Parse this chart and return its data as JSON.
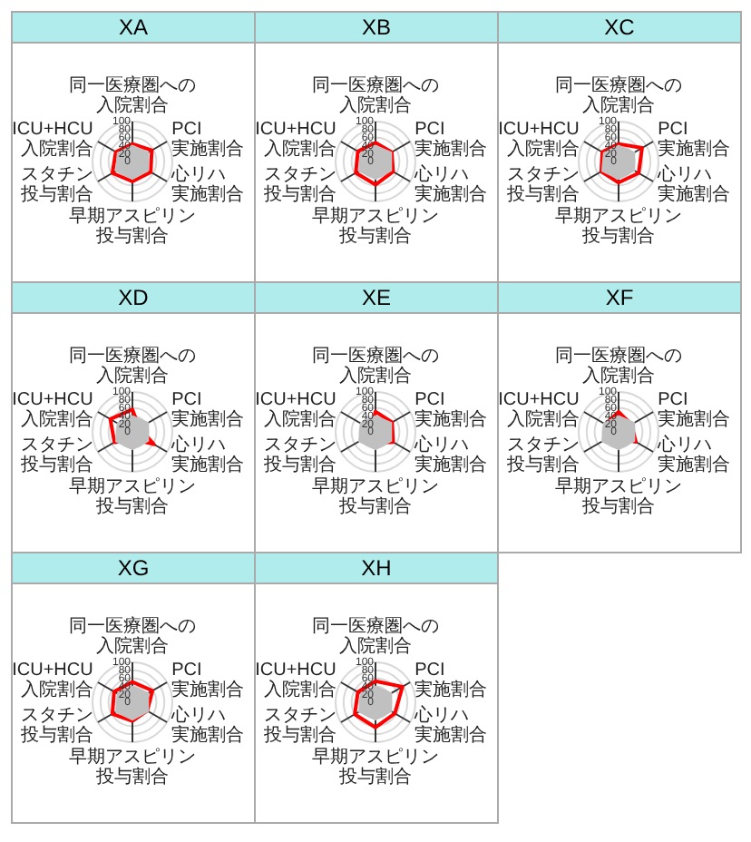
{
  "chart_data": [
    {
      "type": "radar",
      "title": "XA",
      "categories": [
        "同一医療圏への入院割合",
        "PCI実施割合",
        "心リハ実施割合",
        "早期アスピリン投与割合",
        "スタチン投与割合",
        "ICU+HCU入院割合"
      ],
      "ylim": [
        0,
        100
      ],
      "yticks": [
        0,
        20,
        40,
        60,
        80,
        100
      ],
      "grid": true,
      "series": [
        {
          "type": "area",
          "color": "#c0c0c0",
          "values": [
            42,
            48,
            48,
            46,
            50,
            45
          ]
        },
        {
          "color": "#ff0000",
          "values": [
            44,
            56,
            53,
            50,
            58,
            48
          ]
        }
      ]
    },
    {
      "type": "radar",
      "title": "XB",
      "categories": [
        "同一医療圏への入院割合",
        "PCI実施割合",
        "心リハ実施割合",
        "早期アスピリン投与割合",
        "スタチン投与割合",
        "ICU+HCU入院割合"
      ],
      "ylim": [
        0,
        100
      ],
      "yticks": [
        0,
        20,
        40,
        60,
        80,
        100
      ],
      "grid": true,
      "series": [
        {
          "type": "area",
          "color": "#c0c0c0",
          "values": [
            42,
            48,
            48,
            46,
            50,
            45
          ]
        },
        {
          "color": "#ff0000",
          "values": [
            47,
            47,
            51,
            58,
            57,
            51
          ]
        }
      ]
    },
    {
      "type": "radar",
      "title": "XC",
      "categories": [
        "同一医療圏への入院割合",
        "PCI実施割合",
        "心リハ実施割合",
        "早期アスピリン投与割合",
        "スタチン投与割合",
        "ICU+HCU入院割合"
      ],
      "ylim": [
        0,
        100
      ],
      "yticks": [
        0,
        20,
        40,
        60,
        80,
        100
      ],
      "grid": true,
      "series": [
        {
          "type": "area",
          "color": "#c0c0c0",
          "values": [
            42,
            48,
            48,
            46,
            50,
            45
          ]
        },
        {
          "color": "#ff0000",
          "values": [
            44,
            68,
            58,
            53,
            50,
            47
          ]
        }
      ]
    },
    {
      "type": "radar",
      "title": "XD",
      "categories": [
        "同一医療圏への入院割合",
        "PCI実施割合",
        "心リハ実施割合",
        "早期アスピリン投与割合",
        "スタチン投与割合",
        "ICU+HCU入院割合"
      ],
      "ylim": [
        0,
        100
      ],
      "yticks": [
        0,
        20,
        40,
        60,
        80,
        100
      ],
      "grid": true,
      "series": [
        {
          "type": "area",
          "color": "#c0c0c0",
          "values": [
            42,
            48,
            48,
            46,
            50,
            45
          ]
        },
        {
          "color": "#ff0000",
          "values": [
            56,
            20,
            62,
            18,
            52,
            64
          ]
        }
      ]
    },
    {
      "type": "radar",
      "title": "XE",
      "categories": [
        "同一医療圏への入院割合",
        "PCI実施割合",
        "心リハ実施割合",
        "早期アスピリン投与割合",
        "スタチン投与割合",
        "ICU+HCU入院割合"
      ],
      "ylim": [
        0,
        100
      ],
      "yticks": [
        0,
        20,
        40,
        60,
        80,
        100
      ],
      "grid": true,
      "series": [
        {
          "type": "area",
          "color": "#c0c0c0",
          "values": [
            42,
            48,
            48,
            46,
            50,
            45
          ]
        },
        {
          "color": "#ff0000",
          "values": [
            51,
            48,
            51,
            28,
            33,
            12
          ]
        }
      ]
    },
    {
      "type": "radar",
      "title": "XF",
      "categories": [
        "同一医療圏への入院割合",
        "PCI実施割合",
        "心リハ実施割合",
        "早期アスピリン投与割合",
        "スタチン投与割合",
        "ICU+HCU入院割合"
      ],
      "ylim": [
        0,
        100
      ],
      "yticks": [
        0,
        20,
        40,
        60,
        80,
        100
      ],
      "grid": true,
      "series": [
        {
          "type": "area",
          "color": "#c0c0c0",
          "values": [
            42,
            48,
            48,
            46,
            50,
            45
          ]
        },
        {
          "color": "#ff0000",
          "values": [
            50,
            37,
            50,
            15,
            33,
            38
          ]
        }
      ]
    },
    {
      "type": "radar",
      "title": "XG",
      "categories": [
        "同一医療圏への入院割合",
        "PCI実施割合",
        "心リハ実施割合",
        "早期アスピリン投与割合",
        "スタチン投与割合",
        "ICU+HCU入院割合"
      ],
      "ylim": [
        0,
        100
      ],
      "yticks": [
        0,
        20,
        40,
        60,
        80,
        100
      ],
      "grid": true,
      "series": [
        {
          "type": "area",
          "color": "#c0c0c0",
          "values": [
            42,
            48,
            48,
            46,
            50,
            45
          ]
        },
        {
          "color": "#ff0000",
          "values": [
            51,
            58,
            43,
            47,
            58,
            53
          ]
        }
      ]
    },
    {
      "type": "radar",
      "title": "XH",
      "categories": [
        "同一医療圏への入院割合",
        "PCI実施割合",
        "心リハ実施割合",
        "早期アスピリン投与割合",
        "スタチン投与割合",
        "ICU+HCU入院割合"
      ],
      "ylim": [
        0,
        100
      ],
      "yticks": [
        0,
        20,
        40,
        60,
        80,
        100
      ],
      "grid": true,
      "series": [
        {
          "type": "area",
          "color": "#c0c0c0",
          "values": [
            42,
            48,
            48,
            46,
            50,
            45
          ]
        },
        {
          "color": "#ff0000",
          "values": [
            53,
            78,
            56,
            63,
            60,
            51
          ]
        }
      ]
    }
  ]
}
